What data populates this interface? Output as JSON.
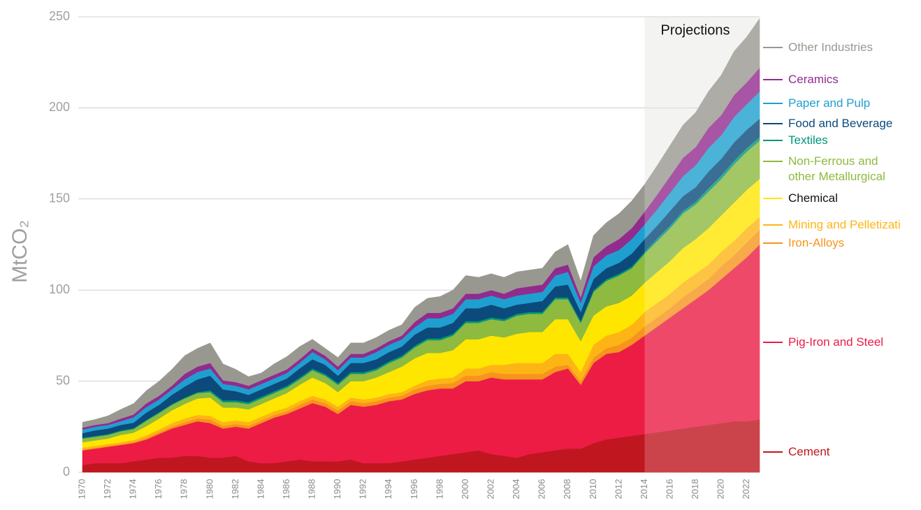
{
  "chart_data": {
    "type": "stacked-area",
    "y_label": "MtCO₂",
    "annotation": "Projections",
    "projection_start": 2014,
    "x": [
      1970,
      1971,
      1972,
      1973,
      1974,
      1975,
      1976,
      1977,
      1978,
      1979,
      1980,
      1981,
      1982,
      1983,
      1984,
      1985,
      1986,
      1987,
      1988,
      1989,
      1990,
      1991,
      1992,
      1993,
      1994,
      1995,
      1996,
      1997,
      1998,
      1999,
      2000,
      2001,
      2002,
      2003,
      2004,
      2005,
      2006,
      2007,
      2008,
      2009,
      2010,
      2011,
      2012,
      2013,
      2014,
      2015,
      2016,
      2017,
      2018,
      2019,
      2020,
      2021,
      2022,
      2023
    ],
    "xlim": [
      1970,
      2023
    ],
    "xticks": [
      1970,
      1972,
      1974,
      1976,
      1978,
      1980,
      1982,
      1984,
      1986,
      1988,
      1990,
      1992,
      1994,
      1996,
      1998,
      2000,
      2002,
      2004,
      2006,
      2008,
      2010,
      2012,
      2014,
      2016,
      2018,
      2020,
      2022
    ],
    "ylim": [
      0,
      250
    ],
    "yticks": [
      0,
      50,
      100,
      150,
      200,
      250
    ],
    "grid": true,
    "series": [
      {
        "name": "Cement",
        "color": "#c0161f",
        "values": [
          4,
          5,
          5,
          5,
          6,
          7,
          8,
          8,
          9,
          9,
          8,
          8,
          9,
          6,
          5,
          5,
          6,
          7,
          6,
          6,
          6,
          7,
          5,
          5,
          5,
          6,
          7,
          8,
          9,
          10,
          11,
          12,
          10,
          9,
          8,
          10,
          11,
          12,
          13,
          13,
          16,
          18,
          19,
          20,
          21,
          22,
          23,
          24,
          25,
          26,
          27,
          28,
          28,
          29
        ]
      },
      {
        "name": "Pig-Iron and Steel",
        "color": "#ec1c45",
        "values": [
          8,
          8,
          9,
          10,
          10,
          11,
          13,
          16,
          17,
          19,
          19,
          16,
          16,
          18,
          22,
          25,
          26,
          28,
          32,
          30,
          26,
          30,
          31,
          32,
          34,
          34,
          36,
          37,
          37,
          36,
          39,
          38,
          42,
          42,
          43,
          41,
          40,
          43,
          44,
          35,
          44,
          47,
          47,
          50,
          54,
          58,
          62,
          66,
          70,
          74,
          79,
          84,
          90,
          96
        ]
      },
      {
        "name": "Iron-Alloys",
        "color": "#f7941d",
        "values": [
          0.5,
          0.5,
          0.5,
          0.5,
          0.7,
          0.8,
          1,
          1,
          1.5,
          1.5,
          2,
          1.5,
          1.5,
          1.5,
          1.5,
          1.5,
          1.5,
          2,
          2,
          2,
          2,
          2,
          2,
          2,
          2,
          2,
          2.5,
          2.5,
          2.5,
          3,
          3,
          3,
          3,
          3,
          3,
          3,
          3,
          3,
          2,
          2,
          3,
          3,
          4,
          4,
          5,
          5,
          5,
          6,
          6,
          6,
          7,
          7,
          8,
          8
        ]
      },
      {
        "name": "Mining and Pelletizati",
        "color": "#fdb515",
        "values": [
          1,
          1,
          1,
          1,
          1,
          1.5,
          1.5,
          2,
          2,
          2,
          2,
          2,
          2,
          2,
          2,
          2,
          2,
          2,
          2,
          2,
          2,
          2,
          2,
          2,
          2,
          2,
          2,
          3,
          3,
          3,
          4,
          4,
          4,
          5,
          6,
          6,
          6,
          7,
          6,
          5,
          7,
          7,
          7,
          7,
          8,
          8,
          8,
          8,
          8,
          8,
          8,
          8,
          8,
          7
        ]
      },
      {
        "name": "Chemical",
        "color": "#ffe600",
        "values": [
          3,
          3,
          3,
          4,
          4,
          5,
          6,
          7,
          8,
          9,
          10,
          8,
          7,
          7,
          7,
          7,
          8,
          9,
          10,
          9,
          8,
          9,
          10,
          11,
          12,
          14,
          15,
          15,
          14,
          15,
          16,
          16,
          16,
          15,
          16,
          17,
          17,
          19,
          19,
          17,
          16,
          16,
          16,
          16,
          16,
          17,
          18,
          19,
          19,
          20,
          20,
          21,
          21,
          21
        ]
      },
      {
        "name": "Non-Ferrous and other Metallurgical",
        "color": "#8dba3f",
        "values": [
          2,
          2,
          2,
          2,
          2,
          3,
          3,
          3,
          3,
          3,
          3,
          3,
          3,
          3,
          3,
          3,
          3,
          3,
          4,
          4,
          4,
          4,
          4,
          4,
          5,
          5,
          6,
          7,
          7,
          8,
          9,
          9,
          9,
          9,
          10,
          10,
          10,
          11,
          11,
          10,
          13,
          14,
          15,
          15,
          16,
          17,
          18,
          19,
          19,
          20,
          20,
          21,
          21,
          21
        ]
      },
      {
        "name": "Textiles",
        "color": "#00957a",
        "values": [
          0.5,
          0.5,
          0.5,
          0.5,
          0.5,
          0.5,
          0.5,
          0.5,
          0.5,
          0.5,
          1,
          1,
          1,
          1,
          1,
          1,
          1,
          1,
          1,
          1,
          1,
          1,
          1,
          1,
          1,
          1,
          1,
          1,
          1,
          1,
          1,
          1,
          1,
          1,
          1,
          1,
          1,
          1,
          1,
          1,
          1,
          1,
          1,
          1,
          1,
          1.5,
          1.5,
          1.5,
          1.5,
          2,
          2,
          2,
          2,
          2
        ]
      },
      {
        "name": "Food and Beverage",
        "color": "#0b4a7a",
        "values": [
          2.5,
          3,
          3,
          3,
          3,
          4,
          4,
          5,
          6,
          7,
          8,
          6,
          5,
          4,
          4,
          4,
          4,
          5,
          5,
          5,
          4,
          5,
          5,
          5,
          5,
          5,
          6,
          6,
          6,
          6,
          7,
          7,
          7,
          6,
          5,
          5,
          6,
          6,
          7,
          5,
          6,
          6,
          6,
          7,
          7,
          7,
          8,
          8,
          8,
          9,
          9,
          10,
          10,
          10
        ]
      },
      {
        "name": "Paper and Pulp",
        "color": "#1f9fcf",
        "values": [
          2,
          2,
          2,
          2,
          3,
          3,
          3,
          3,
          4,
          4,
          4,
          3,
          3,
          3,
          3,
          3,
          3,
          3,
          4,
          3,
          3,
          3,
          3,
          4,
          4,
          4,
          4,
          5,
          5,
          5,
          5,
          5,
          5,
          5,
          5,
          5,
          5,
          6,
          7,
          5,
          7,
          7,
          7,
          8,
          8,
          9,
          10,
          11,
          12,
          13,
          13,
          14,
          14,
          15
        ]
      },
      {
        "name": "Ceramics",
        "color": "#922b8e",
        "values": [
          1,
          1,
          1,
          1.5,
          1.5,
          2,
          2,
          2,
          3,
          3,
          3,
          2,
          2,
          2,
          2,
          2,
          2,
          2,
          2,
          2,
          2,
          2,
          2,
          2,
          2,
          2,
          3,
          3,
          3,
          3,
          3,
          3,
          3,
          3,
          4,
          4,
          4,
          4,
          4,
          3,
          5,
          5,
          6,
          6,
          7,
          8,
          9,
          10,
          10,
          11,
          11,
          12,
          12,
          13
        ]
      },
      {
        "name": "Other Industries",
        "color": "#999890",
        "values": [
          3,
          3,
          4,
          5,
          6,
          7,
          8,
          9,
          10,
          10,
          11,
          9,
          7,
          5,
          4,
          6,
          7,
          7,
          5,
          4,
          5,
          6,
          6,
          6,
          6,
          6,
          8,
          8,
          9,
          10,
          10,
          9,
          9,
          9,
          9,
          9,
          9,
          9,
          11,
          9,
          12,
          13,
          14,
          15,
          15,
          16,
          17,
          18,
          19,
          20,
          22,
          24,
          25,
          27
        ]
      }
    ]
  }
}
